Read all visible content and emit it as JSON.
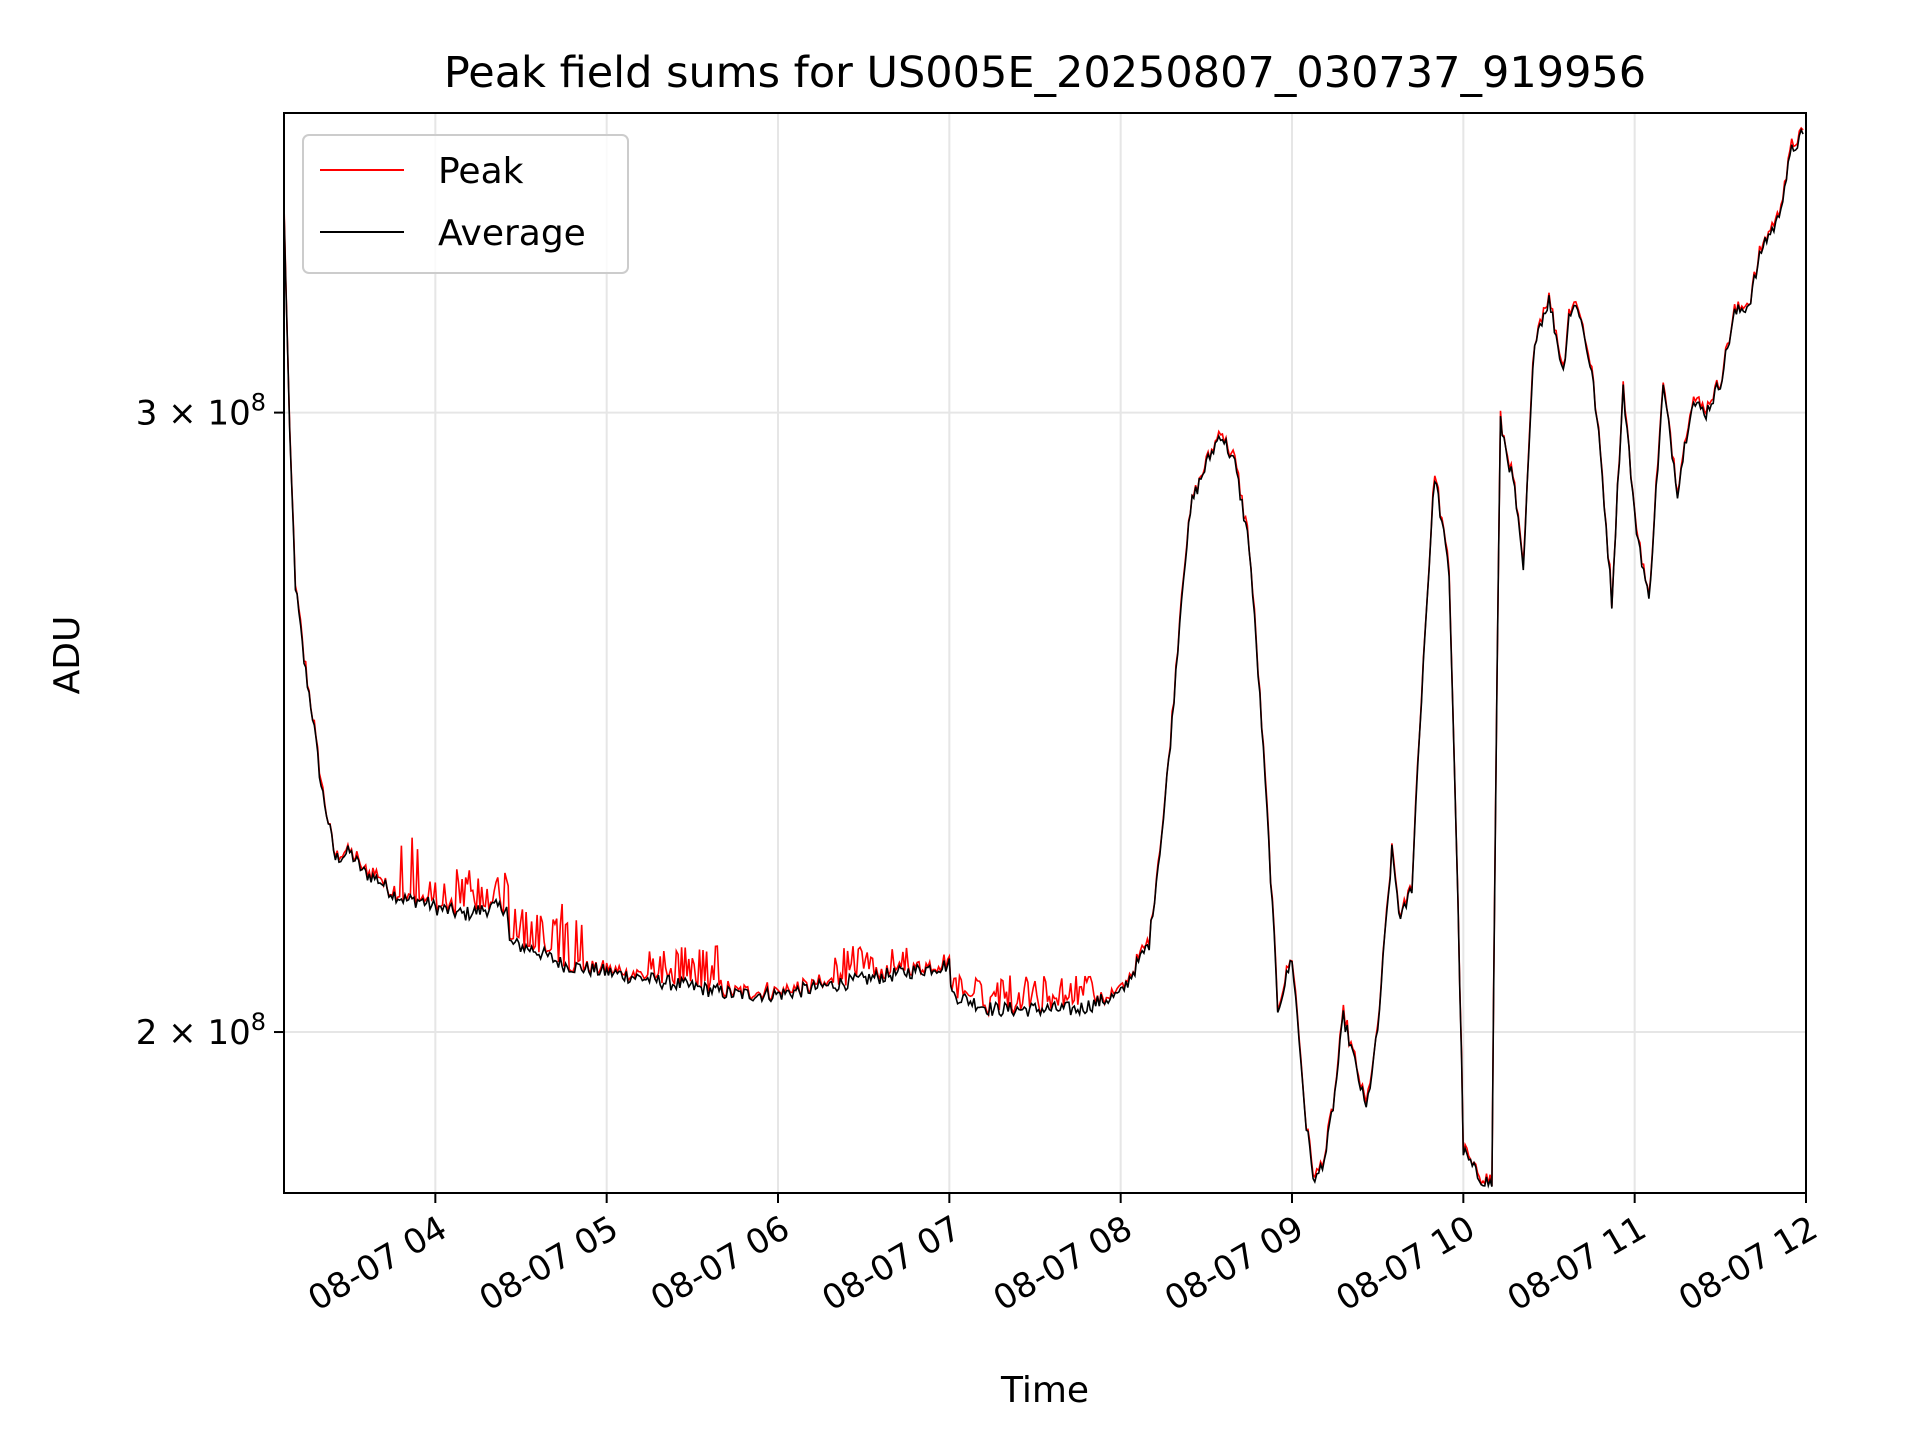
{
  "chart_data": {
    "type": "line",
    "title": "Peak field sums for US005E_20250807_030737_919956",
    "xlabel": "Time",
    "ylabel": "ADU",
    "x_tick_labels": [
      "08-07 04",
      "08-07 05",
      "08-07 06",
      "08-07 07",
      "08-07 08",
      "08-07 09",
      "08-07 10",
      "08-07 11",
      "08-07 12"
    ],
    "x_ticks": [
      "2025-08-07 04:00",
      "2025-08-07 05:00",
      "2025-08-07 06:00",
      "2025-08-07 07:00",
      "2025-08-07 08:00",
      "2025-08-07 09:00",
      "2025-08-07 10:00",
      "2025-08-07 11:00",
      "2025-08-07 12:00"
    ],
    "xlim": [
      "2025-08-07 03:07",
      "2025-08-07 12:00"
    ],
    "y_scale": "log",
    "ylim": [
      180000000,
      365000000
    ],
    "y_ticks": [
      {
        "value": 200000000,
        "mantissa": "2",
        "base": "10",
        "exp": "8"
      },
      {
        "value": 300000000,
        "mantissa": "3",
        "base": "10",
        "exp": "8"
      }
    ],
    "grid": true,
    "legend_position": "top-left",
    "series": [
      {
        "name": "Peak",
        "color": "#ff0000",
        "noise_up": 3000000
      },
      {
        "name": "Average",
        "color": "#000000",
        "noise_up": 0
      }
    ],
    "x": [
      "03:07",
      "03:09",
      "03:11",
      "03:14",
      "03:17",
      "03:20",
      "03:25",
      "03:30",
      "03:35",
      "03:40",
      "03:45",
      "03:50",
      "03:55",
      "04:00",
      "04:10",
      "04:20",
      "04:25",
      "04:26",
      "04:35",
      "04:45",
      "05:00",
      "05:15",
      "05:30",
      "05:45",
      "06:00",
      "06:15",
      "06:30",
      "06:45",
      "07:00",
      "07:01",
      "07:15",
      "07:30",
      "07:45",
      "08:00",
      "08:10",
      "08:15",
      "08:18",
      "08:22",
      "08:25",
      "08:30",
      "08:35",
      "08:40",
      "08:45",
      "08:50",
      "08:55",
      "09:00",
      "09:05",
      "09:08",
      "09:12",
      "09:15",
      "09:18",
      "09:22",
      "09:26",
      "09:30",
      "09:35",
      "09:38",
      "09:42",
      "09:46",
      "09:50",
      "09:55",
      "10:00",
      "10:05",
      "10:10",
      "10:13",
      "10:18",
      "10:21",
      "10:25",
      "10:30",
      "10:35",
      "10:37",
      "10:40",
      "10:45",
      "10:48",
      "10:52",
      "10:56",
      "11:00",
      "11:05",
      "11:10",
      "11:15",
      "11:20",
      "11:25",
      "11:30",
      "11:35",
      "11:40",
      "11:45",
      "11:50",
      "11:55",
      "11:59"
    ],
    "average": [
      342,
      295,
      268,
      255,
      246,
      235,
      224,
      225,
      222,
      221,
      219,
      218,
      218,
      217,
      216,
      217,
      217,
      212,
      211,
      209,
      208,
      207,
      206,
      205,
      205,
      206,
      207,
      208,
      209,
      205,
      203,
      203,
      203,
      205,
      212,
      230,
      245,
      270,
      283,
      290,
      296,
      290,
      275,
      240,
      203,
      210,
      188,
      181,
      185,
      192,
      202,
      196,
      190,
      200,
      225,
      215,
      220,
      255,
      288,
      270,
      185,
      182,
      181,
      298,
      285,
      270,
      315,
      323,
      308,
      320,
      322,
      308,
      292,
      265,
      305,
      280,
      265,
      305,
      285,
      302,
      300,
      306,
      320,
      322,
      335,
      340,
      356,
      360
    ],
    "peak_spikes": [
      [
        "03:40",
        "03:56",
        227
      ],
      [
        "03:56",
        "04:26",
        221
      ],
      [
        "04:26",
        "04:53",
        216
      ],
      [
        "05:15",
        "05:40",
        210
      ],
      [
        "06:15",
        "06:45",
        210
      ],
      [
        "07:00",
        "07:50",
        206
      ]
    ]
  }
}
